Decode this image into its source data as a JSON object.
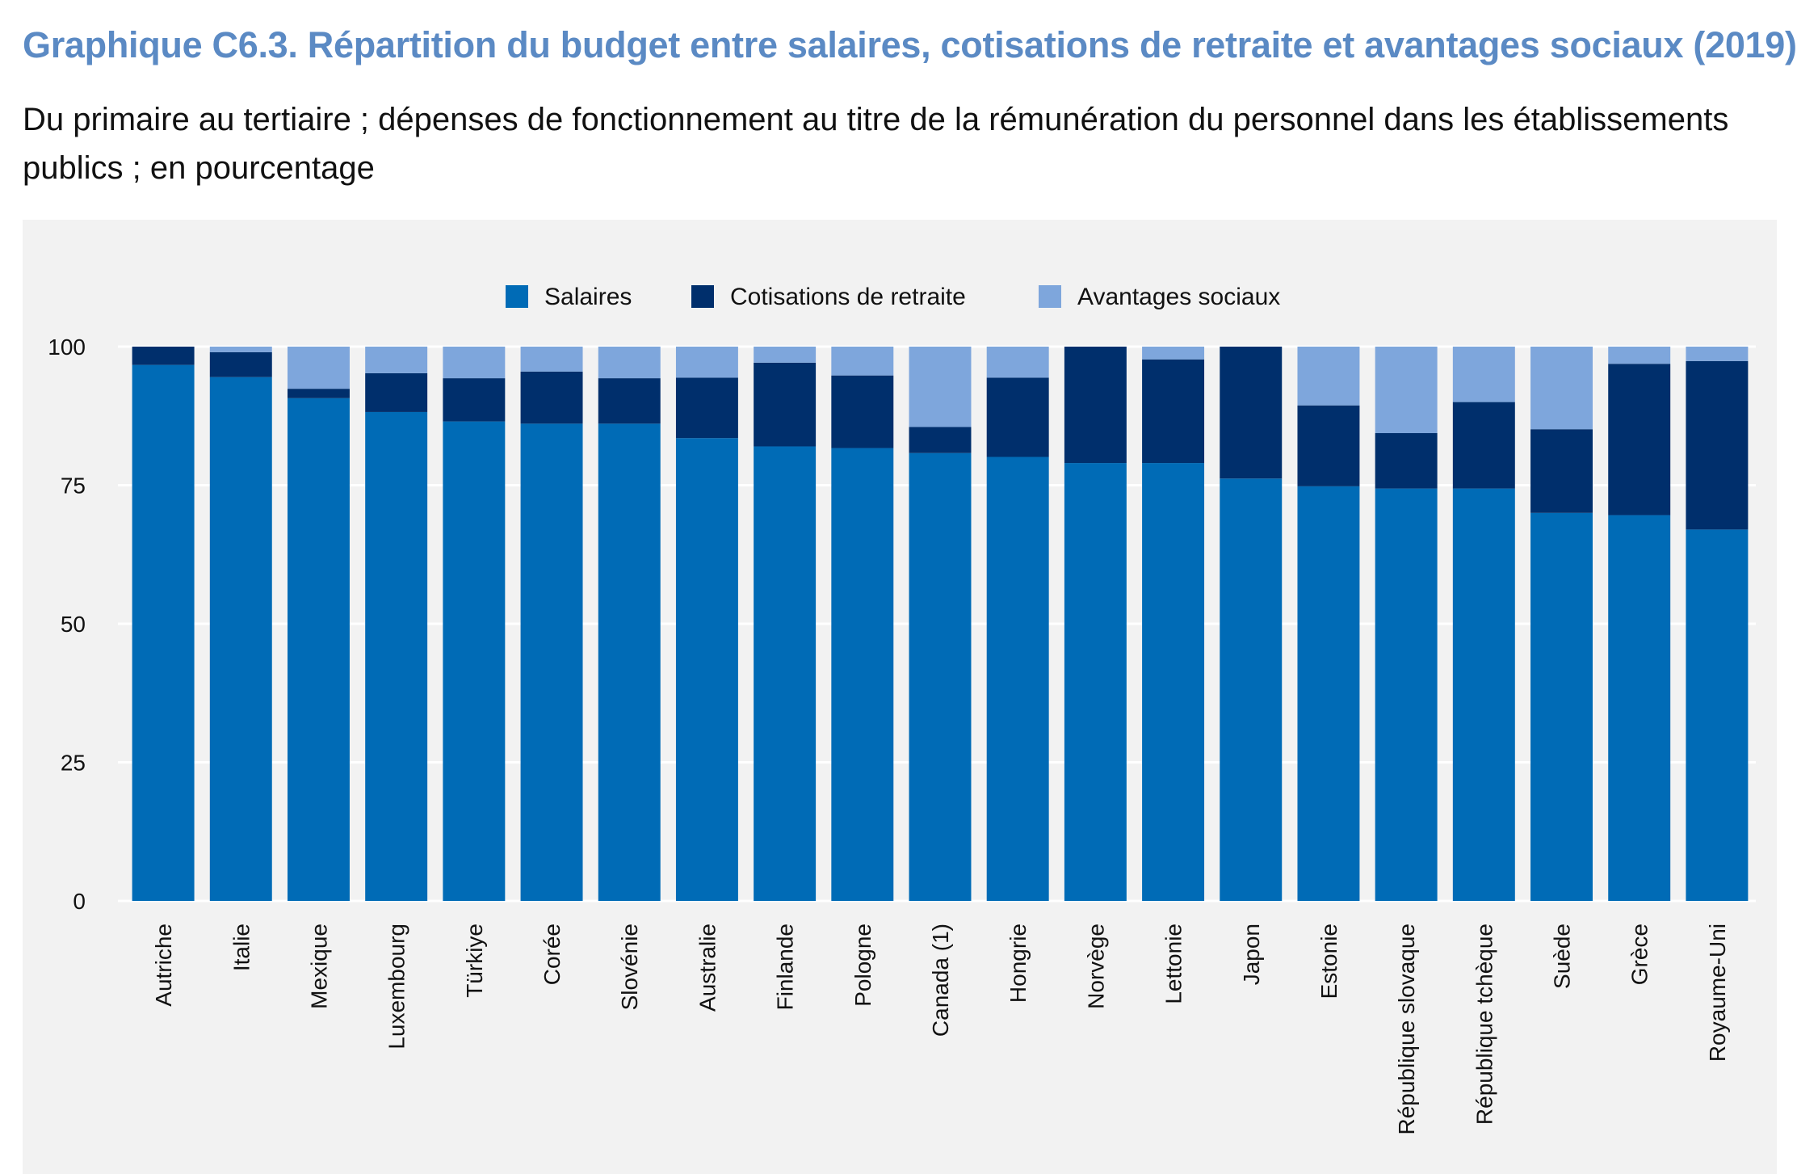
{
  "title": "Graphique C6.3. Répartition du budget entre salaires, cotisations de retraite et avantages sociaux (2019)",
  "subtitle": "Du primaire au tertiaire ; dépenses de fonctionnement au titre de la rémunération du personnel dans les établissements publics ; en pourcentage",
  "colors": {
    "salaires": "#006bb6",
    "cotisations": "#002f6c",
    "avantages": "#7ea6dc"
  },
  "chart_data": {
    "type": "bar",
    "stacked": true,
    "categories": [
      "Autriche",
      "Italie",
      "Mexique",
      "Luxembourg",
      "Türkiye",
      "Corée",
      "Slovénie",
      "Australie",
      "Finlande",
      "Pologne",
      "Canada (1)",
      "Hongrie",
      "Norvège",
      "Lettonie",
      "Japon",
      "Estonie",
      "République slovaque",
      "République tchèque",
      "Suède",
      "Grèce",
      "Royaume-Uni"
    ],
    "series": [
      {
        "name": "Salaires",
        "values": [
          96.7,
          94.5,
          90.7,
          88.2,
          86.5,
          86.1,
          86.1,
          83.5,
          82.0,
          81.7,
          80.8,
          80.1,
          79.0,
          79.0,
          76.2,
          74.8,
          74.4,
          74.4,
          70.0,
          69.6,
          67.0
        ]
      },
      {
        "name": "Cotisations de retraite",
        "values": [
          3.3,
          4.5,
          1.7,
          7.0,
          7.8,
          9.4,
          8.2,
          10.9,
          15.1,
          13.1,
          4.7,
          14.3,
          21.0,
          18.7,
          23.8,
          14.6,
          10.0,
          15.6,
          15.1,
          27.3,
          30.4
        ]
      },
      {
        "name": "Avantages sociaux",
        "values": [
          0.0,
          1.0,
          7.6,
          4.8,
          5.7,
          4.5,
          5.7,
          5.6,
          2.9,
          5.2,
          14.5,
          5.6,
          0.0,
          2.3,
          0.0,
          10.6,
          15.6,
          10.0,
          14.9,
          3.1,
          2.6
        ]
      }
    ],
    "ylim": [
      0,
      100
    ],
    "yticks": [
      0,
      25,
      50,
      75,
      100
    ],
    "xlabel": "",
    "ylabel": "",
    "legend": "top-center",
    "grid": true
  }
}
